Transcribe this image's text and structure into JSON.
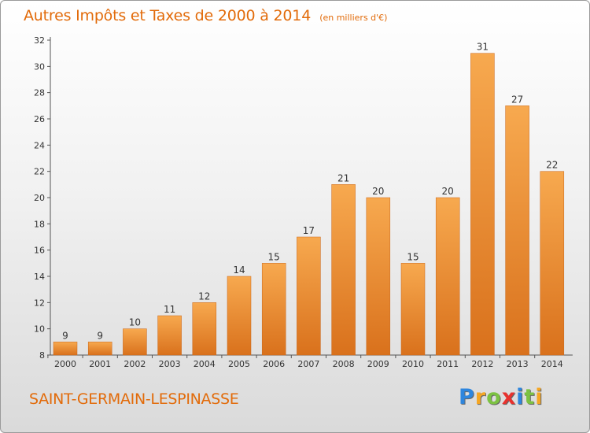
{
  "title": "Autres Impôts et Taxes de 2000 à 2014",
  "subtitle": "(en milliers d'€)",
  "commune": "SAINT-GERMAIN-LESPINASSE",
  "logo": {
    "letters": [
      "P",
      "r",
      "o",
      "x",
      "i",
      "t",
      "i"
    ],
    "colors": [
      "#2e86de",
      "#f5a623",
      "#7cc242",
      "#e8322e",
      "#2e86de",
      "#7cc242",
      "#f5a623"
    ]
  },
  "chart_data": {
    "type": "bar",
    "categories": [
      "2000",
      "2001",
      "2002",
      "2003",
      "2004",
      "2005",
      "2006",
      "2007",
      "2008",
      "2009",
      "2010",
      "2011",
      "2012",
      "2013",
      "2014"
    ],
    "values": [
      9,
      9,
      10,
      11,
      12,
      14,
      15,
      17,
      21,
      20,
      15,
      20,
      31,
      27,
      22
    ],
    "ylim": [
      8,
      32
    ],
    "yticks": [
      8,
      10,
      12,
      14,
      16,
      18,
      20,
      22,
      24,
      26,
      28,
      30,
      32
    ],
    "grid": false,
    "bar_color_top": "#f7a94f",
    "bar_color_bottom": "#d9711c"
  }
}
